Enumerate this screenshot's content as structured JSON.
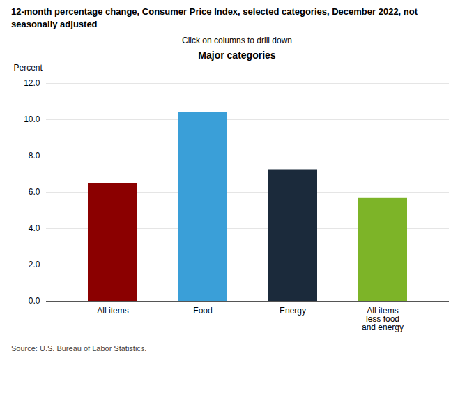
{
  "chart_data": {
    "type": "bar",
    "title": "12-month percentage change, Consumer Price Index, selected categories, December 2022, not\nseasonally adjusted",
    "subtitle": "Click on columns to drill down",
    "annotations": [
      "Major categories",
      "Source: U.S. Bureau of Labor Statistics."
    ],
    "ylabel": "Percent",
    "categories": [
      "All items",
      "Food",
      "Energy",
      "All items\nless food\nand energy"
    ],
    "values": [
      6.5,
      10.4,
      7.25,
      5.7
    ],
    "colors": [
      "#8B0000",
      "#3A9FD8",
      "#1B2A3B",
      "#7DB428"
    ],
    "ylim": [
      0,
      12.0
    ],
    "yticks": [
      {
        "value": 0,
        "label": "0.0"
      },
      {
        "value": 2,
        "label": "2.0"
      },
      {
        "value": 4,
        "label": "4.0"
      },
      {
        "value": 6,
        "label": "6.0"
      },
      {
        "value": 8,
        "label": "8.0"
      },
      {
        "value": 10,
        "label": "10.0"
      },
      {
        "value": 12,
        "label": "12.0"
      }
    ],
    "grid": true
  }
}
